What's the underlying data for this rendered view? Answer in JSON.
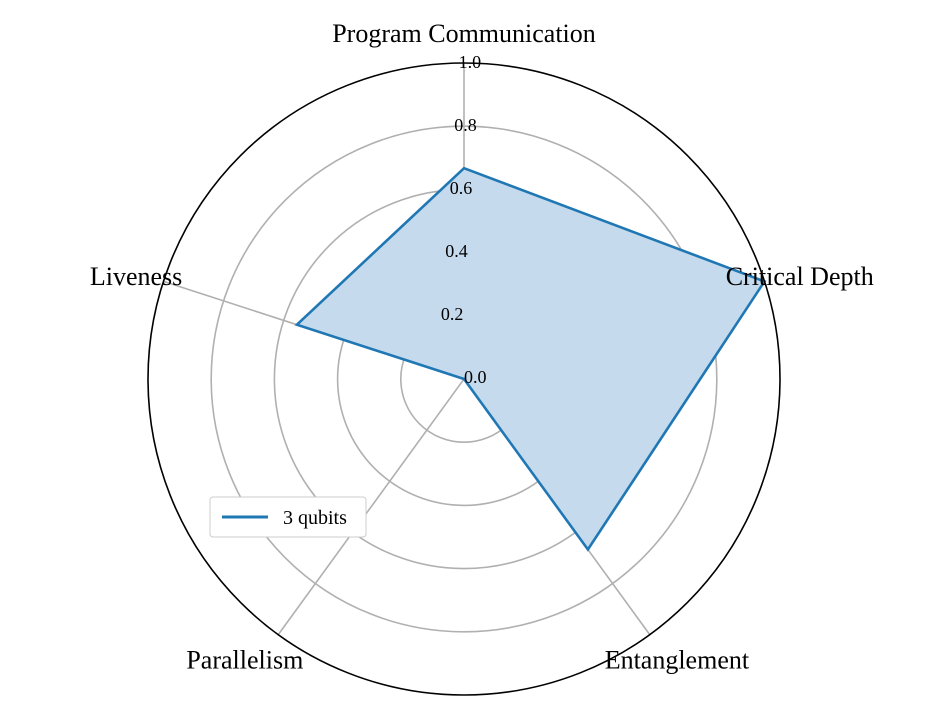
{
  "chart_data": {
    "type": "radar",
    "axes": [
      "Program Communication",
      "Critical Depth",
      "Entanglement",
      "Parallelism",
      "Liveness"
    ],
    "radial_ticks": [
      "0.0",
      "0.2",
      "0.4",
      "0.6",
      "0.8",
      "1.0"
    ],
    "rlim": [
      0,
      1
    ],
    "grid": true,
    "legend_position": "lower-left",
    "series": [
      {
        "name": "3 qubits",
        "values": [
          0.667,
          1.0,
          0.667,
          0.0,
          0.556
        ],
        "color": "#1f77b4",
        "fill": "#c5daec"
      }
    ]
  }
}
